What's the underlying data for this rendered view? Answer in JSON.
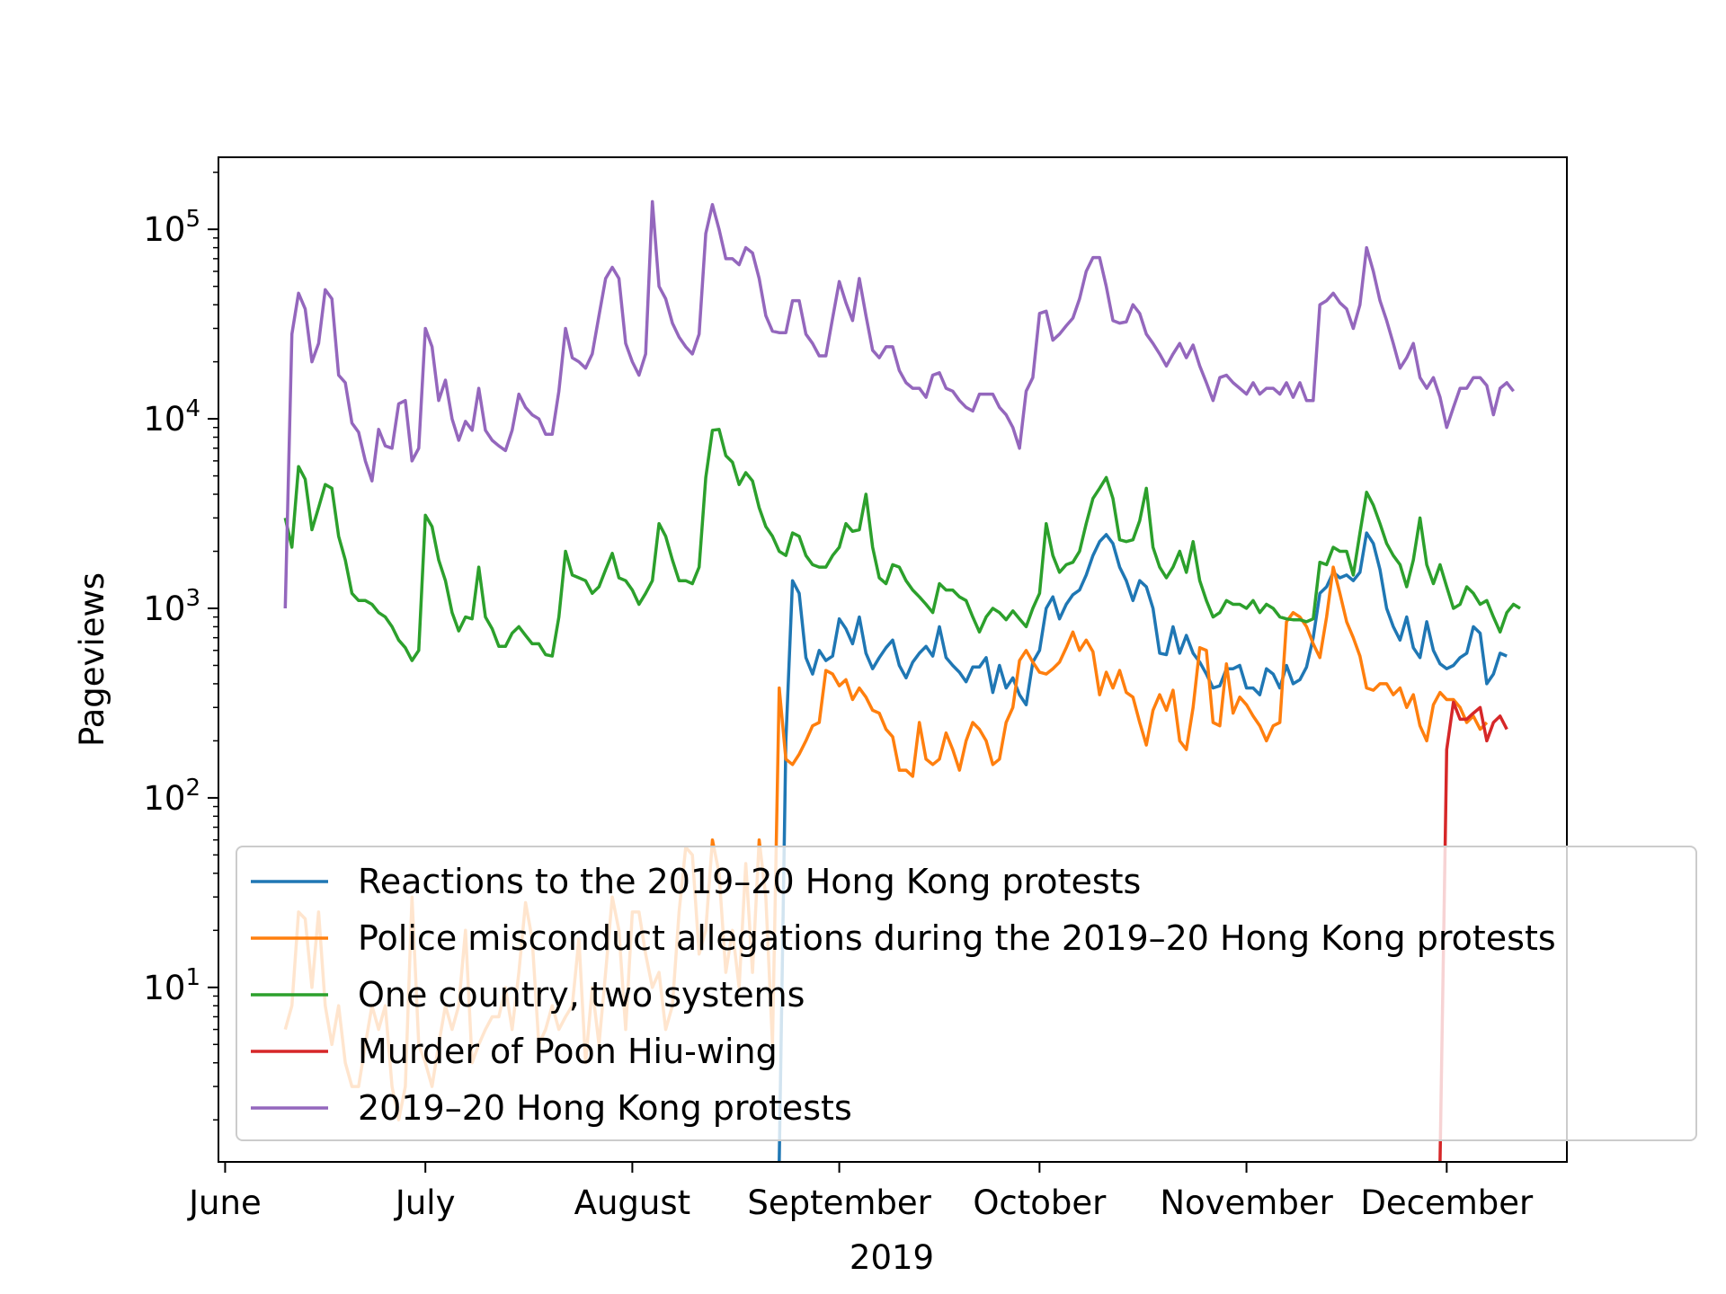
{
  "chart_data": {
    "type": "line",
    "xlabel": "2019",
    "ylabel": "Pageviews",
    "yscale": "log",
    "ylim": [
      1.2,
      240000
    ],
    "xlim": [
      "2019-05-31",
      "2019-12-19"
    ],
    "grid": false,
    "legend_position": "lower-right",
    "x_tick_labels": [
      "June",
      "July",
      "August",
      "September",
      "October",
      "November",
      "December"
    ],
    "x_tick_dates": [
      "2019-06-01",
      "2019-07-01",
      "2019-08-01",
      "2019-09-01",
      "2019-10-01",
      "2019-11-01",
      "2019-12-01"
    ],
    "y_ticks": [
      {
        "value": 10,
        "base": "10",
        "exp": "1"
      },
      {
        "value": 100,
        "base": "10",
        "exp": "2"
      },
      {
        "value": 1000,
        "base": "10",
        "exp": "3"
      },
      {
        "value": 10000,
        "base": "10",
        "exp": "4"
      },
      {
        "value": 100000,
        "base": "10",
        "exp": "5"
      }
    ],
    "series": [
      {
        "name": "Reactions to the 2019–20 Hong Kong protests",
        "color": "#1f77b4",
        "start": "2019-08-23",
        "values": [
          1,
          200,
          1400,
          1200,
          550,
          450,
          600,
          530,
          560,
          880,
          780,
          650,
          900,
          580,
          480,
          550,
          620,
          680,
          500,
          430,
          520,
          580,
          630,
          560,
          800,
          550,
          500,
          460,
          410,
          490,
          490,
          550,
          360,
          500,
          380,
          430,
          350,
          310,
          520,
          600,
          1000,
          1150,
          880,
          1050,
          1180,
          1250,
          1500,
          1900,
          2250,
          2450,
          2200,
          1650,
          1400,
          1100,
          1400,
          1300,
          1000,
          580,
          570,
          800,
          580,
          720,
          580,
          520,
          450,
          380,
          390,
          480,
          480,
          500,
          380,
          380,
          350,
          480,
          450,
          380,
          500,
          400,
          420,
          490,
          700,
          1200,
          1300,
          1550,
          1450,
          1500,
          1400,
          1550,
          2500,
          2200,
          1600,
          1000,
          800,
          680,
          900,
          620,
          550,
          850,
          600,
          510,
          480,
          500,
          550,
          580,
          800,
          740,
          400,
          450,
          580,
          560
        ]
      },
      {
        "name": "Police misconduct allegations during the 2019–20 Hong Kong protests",
        "color": "#ff7f0e",
        "start": "2019-06-10",
        "values": [
          6,
          8,
          25,
          23,
          10,
          25,
          8,
          5,
          8,
          4,
          3,
          3,
          5,
          8,
          6,
          8,
          3,
          2,
          3,
          30,
          5,
          4,
          3,
          5,
          8,
          6,
          8,
          20,
          4,
          5,
          6,
          7,
          7,
          10,
          6,
          12,
          28,
          18,
          5,
          6,
          8,
          6,
          7,
          8,
          18,
          4,
          10,
          5,
          12,
          30,
          20,
          6,
          25,
          25,
          15,
          10,
          12,
          6,
          8,
          25,
          55,
          50,
          15,
          20,
          60,
          40,
          12,
          20,
          10,
          45,
          12,
          60,
          30,
          5,
          380,
          160,
          150,
          170,
          200,
          240,
          250,
          470,
          450,
          390,
          420,
          330,
          380,
          340,
          290,
          280,
          230,
          210,
          140,
          140,
          130,
          250,
          160,
          150,
          160,
          220,
          180,
          140,
          200,
          250,
          230,
          200,
          150,
          160,
          250,
          300,
          530,
          600,
          520,
          460,
          450,
          480,
          520,
          620,
          750,
          600,
          680,
          590,
          350,
          460,
          380,
          470,
          360,
          340,
          250,
          190,
          290,
          350,
          290,
          370,
          200,
          180,
          300,
          620,
          600,
          250,
          240,
          510,
          280,
          340,
          310,
          270,
          240,
          200,
          240,
          250,
          850,
          950,
          900,
          800,
          650,
          550,
          900,
          1650,
          1200,
          850,
          700,
          560,
          380,
          370,
          400,
          400,
          350,
          380,
          300,
          350,
          240,
          200,
          310,
          360,
          330,
          330,
          300,
          250,
          270,
          230,
          250
        ]
      },
      {
        "name": "One country, two systems",
        "color": "#2ca02c",
        "start": "2019-06-10",
        "values": [
          3000,
          2100,
          5600,
          4800,
          2600,
          3400,
          4500,
          4300,
          2400,
          1800,
          1200,
          1100,
          1100,
          1050,
          950,
          900,
          800,
          680,
          620,
          530,
          600,
          3100,
          2700,
          1800,
          1400,
          950,
          760,
          900,
          880,
          1650,
          900,
          780,
          630,
          630,
          740,
          800,
          720,
          650,
          650,
          570,
          560,
          900,
          2000,
          1500,
          1450,
          1400,
          1200,
          1300,
          1600,
          1950,
          1450,
          1400,
          1250,
          1050,
          1200,
          1400,
          2800,
          2400,
          1800,
          1400,
          1400,
          1350,
          1650,
          4900,
          8700,
          8800,
          6400,
          5900,
          4500,
          5200,
          4700,
          3400,
          2700,
          2400,
          2000,
          1900,
          2500,
          2400,
          1900,
          1700,
          1650,
          1650,
          1900,
          2100,
          2800,
          2550,
          2600,
          4000,
          2100,
          1450,
          1350,
          1700,
          1650,
          1400,
          1250,
          1150,
          1050,
          950,
          1350,
          1250,
          1250,
          1150,
          1100,
          900,
          750,
          900,
          1000,
          950,
          870,
          970,
          880,
          800,
          1000,
          1200,
          2800,
          1900,
          1550,
          1700,
          1750,
          2000,
          2800,
          3800,
          4300,
          4900,
          3800,
          2300,
          2250,
          2300,
          2900,
          4300,
          2100,
          1650,
          1450,
          1650,
          2000,
          1550,
          2250,
          1400,
          1100,
          900,
          950,
          1100,
          1050,
          1050,
          1000,
          1100,
          950,
          1050,
          1000,
          900,
          880,
          870,
          870,
          850,
          880,
          1750,
          1700,
          2100,
          2000,
          2000,
          1500,
          2500,
          4100,
          3500,
          2800,
          2200,
          1900,
          1700,
          1300,
          1800,
          3000,
          1700,
          1350,
          1700,
          1300,
          1000,
          1050,
          1300,
          1200,
          1050,
          1100,
          900,
          750,
          950,
          1050,
          1000
        ]
      },
      {
        "name": "Murder of Poon Hiu-wing",
        "color": "#d62728",
        "start": "2019-11-30",
        "values": [
          1,
          180,
          320,
          260,
          260,
          280,
          300,
          200,
          250,
          270,
          230
        ]
      },
      {
        "name": "2019–20 Hong Kong protests",
        "color": "#9467bd",
        "start": "2019-06-10",
        "values": [
          1000,
          28000,
          46000,
          38000,
          20000,
          25000,
          48000,
          43000,
          17000,
          15500,
          9500,
          8500,
          6000,
          4700,
          8800,
          7200,
          7000,
          12000,
          12500,
          6000,
          7000,
          30000,
          24000,
          12500,
          16000,
          10000,
          7700,
          9700,
          8700,
          14500,
          8700,
          7700,
          7200,
          6800,
          8700,
          13500,
          11500,
          10500,
          10000,
          8300,
          8300,
          14000,
          30000,
          21000,
          20000,
          18500,
          22000,
          35000,
          55000,
          63000,
          55000,
          25000,
          20000,
          17000,
          22000,
          140000,
          50000,
          43000,
          32000,
          27000,
          24000,
          22000,
          28000,
          95000,
          135000,
          100000,
          70000,
          70000,
          65000,
          80000,
          75000,
          55000,
          35000,
          29000,
          28500,
          28500,
          42000,
          42000,
          28000,
          25000,
          21500,
          21500,
          34000,
          53000,
          41000,
          33000,
          55000,
          35000,
          23000,
          21000,
          24000,
          24000,
          18000,
          15500,
          14500,
          14500,
          13000,
          17000,
          17500,
          14500,
          14000,
          12500,
          11500,
          11000,
          13500,
          13500,
          13500,
          11500,
          10500,
          9000,
          7000,
          14000,
          16500,
          36000,
          37000,
          26000,
          28000,
          31000,
          34000,
          43000,
          60000,
          71000,
          71000,
          50000,
          33000,
          32000,
          32500,
          40000,
          36000,
          28000,
          25000,
          22000,
          19000,
          22000,
          25000,
          21000,
          24500,
          19000,
          15500,
          12500,
          16500,
          17000,
          15500,
          14500,
          13500,
          15500,
          13500,
          14500,
          14500,
          13500,
          15500,
          13000,
          15500,
          12500,
          12500,
          40000,
          42000,
          46000,
          41000,
          38000,
          30000,
          40000,
          80000,
          60000,
          42000,
          33000,
          25000,
          18500,
          21000,
          25000,
          16500,
          14500,
          16500,
          13000,
          9000,
          11500,
          14500,
          14500,
          16500,
          16500,
          15000,
          10500,
          14500,
          15500,
          14000
        ]
      }
    ]
  }
}
